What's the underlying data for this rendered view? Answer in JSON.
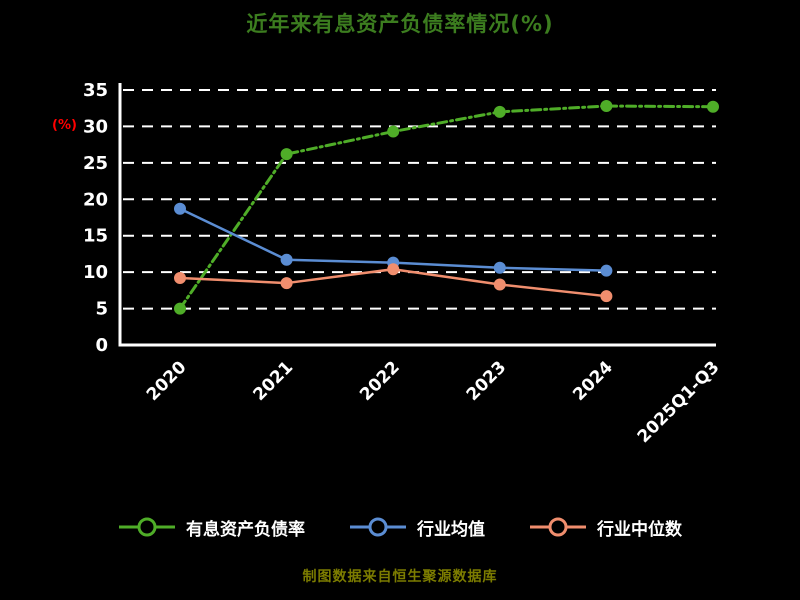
{
  "title": "近年来有息资产负债率情况(%)",
  "footer": "制图数据来自恒生聚源数据库",
  "colors": {
    "background": "#000000",
    "axis": "#ffffff",
    "grid": "#ffffff",
    "title": "#3c7d1f",
    "y_unit": "#ff0000",
    "tick_text": "#ffffff",
    "footer": "#7c7c00"
  },
  "chart_data": {
    "type": "line",
    "title": "近年来有息资产负债率情况(%)",
    "ylabel": "(%)",
    "xlabel": "",
    "ylim": [
      0,
      35
    ],
    "ytick_step": 5,
    "grid": "dashed-horizontal",
    "legend_position": "bottom",
    "categories": [
      "2020",
      "2021",
      "2022",
      "2023",
      "2024",
      "2025Q1-Q3"
    ],
    "series": [
      {
        "name": "有息资产负债率",
        "color": "#4fad28",
        "line_style": "dash-dot",
        "values": [
          5.0,
          26.2,
          29.3,
          32.0,
          32.8,
          32.7
        ]
      },
      {
        "name": "行业均值",
        "color": "#5b8dd3",
        "line_style": "solid",
        "values": [
          18.7,
          11.7,
          11.3,
          10.6,
          10.2,
          null
        ]
      },
      {
        "name": "行业中位数",
        "color": "#f08e6e",
        "line_style": "solid",
        "values": [
          9.2,
          8.5,
          10.4,
          8.3,
          6.7,
          null
        ]
      }
    ]
  }
}
